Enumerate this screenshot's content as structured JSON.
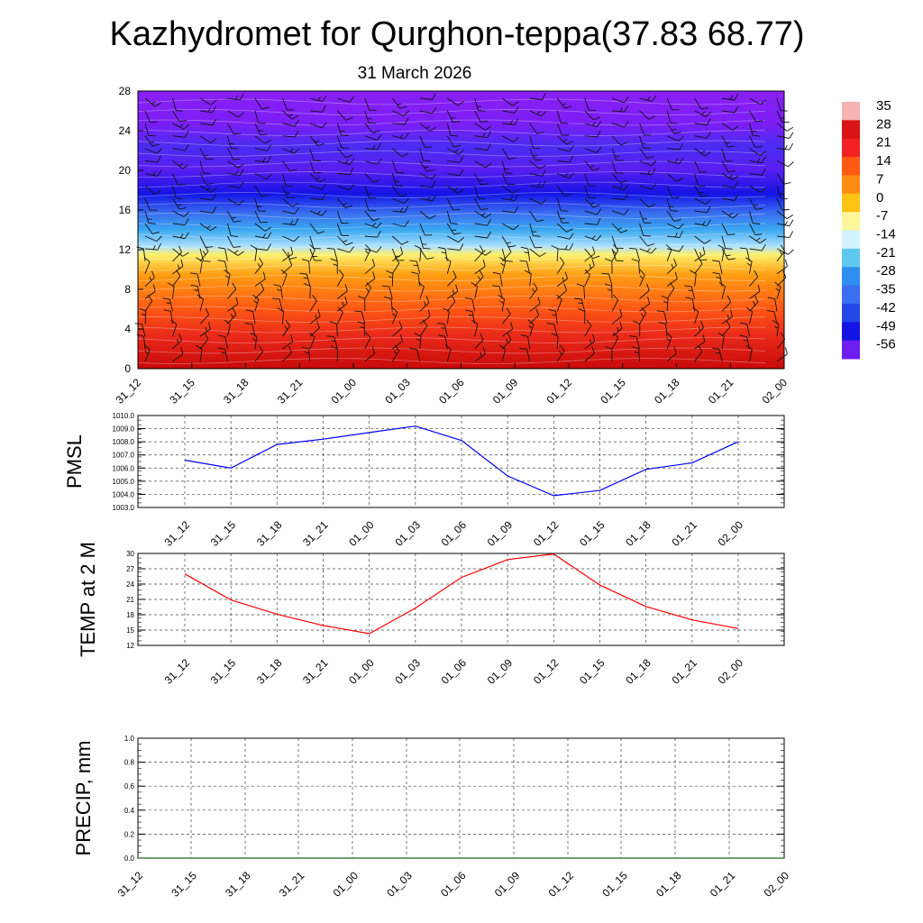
{
  "title": "Kazhydromet for Qurghon-teppa(37.83 68.77)",
  "subtitle": "31 March 2026",
  "time_labels": [
    "31_12",
    "31_15",
    "31_18",
    "31_21",
    "01_00",
    "01_03",
    "01_06",
    "01_09",
    "01_12",
    "01_15",
    "01_18",
    "01_21",
    "02_00"
  ],
  "chart_data": [
    {
      "type": "heatmap",
      "name": "temperature-wind-cross-section",
      "x_tick_labels": [
        "31_12",
        "31_15",
        "31_18",
        "31_21",
        "01_00",
        "01_03",
        "01_06",
        "01_09",
        "01_12",
        "01_15",
        "01_18",
        "01_21",
        "02_00"
      ],
      "y_ticks": [
        0,
        4,
        8,
        12,
        16,
        20,
        24,
        28
      ],
      "ylim": [
        0,
        28
      ],
      "colorbar": {
        "labels": [
          "35",
          "28",
          "21",
          "14",
          "7",
          "0",
          "-7",
          "-14",
          "-21",
          "-28",
          "-35",
          "-42",
          "-49",
          "-56"
        ],
        "colors": [
          "#f6b3b3",
          "#d81414",
          "#f22222",
          "#ff5a14",
          "#ff8c14",
          "#ffc314",
          "#fff59a",
          "#d2f3ff",
          "#5fc8f0",
          "#2e8ff0",
          "#3c6ef0",
          "#2448e8",
          "#1414e6",
          "#6f1ef0"
        ]
      },
      "wind_barbs": true
    },
    {
      "type": "line",
      "name": "pmsl",
      "ylabel": "PMSL",
      "x_tick_labels": [
        "31_12",
        "31_15",
        "31_18",
        "31_21",
        "01_00",
        "01_03",
        "01_06",
        "01_09",
        "01_12",
        "01_15",
        "01_18",
        "01_21",
        "02_00"
      ],
      "y_tick_labels": [
        "1010.0",
        "1009.0",
        "1008.0",
        "1007.0",
        "1006.0",
        "1005.0",
        "1004.0",
        "1003.0"
      ],
      "ylim": [
        1003,
        1010
      ],
      "values": [
        1006.6,
        1006.0,
        1007.8,
        1008.2,
        1008.7,
        1009.2,
        1008.1,
        1005.4,
        1003.9,
        1004.3,
        1005.9,
        1006.4,
        1008.0
      ],
      "color": "#0000ff"
    },
    {
      "type": "line",
      "name": "temp2m",
      "ylabel": "TEMP at 2 M",
      "x_tick_labels": [
        "31_12",
        "31_15",
        "31_18",
        "31_21",
        "01_00",
        "01_03",
        "01_06",
        "01_09",
        "01_12",
        "01_15",
        "01_18",
        "01_21",
        "02_00"
      ],
      "y_ticks": [
        12,
        15,
        18,
        21,
        24,
        27,
        30
      ],
      "ylim": [
        12,
        30
      ],
      "values": [
        26.0,
        20.9,
        18.1,
        15.9,
        14.3,
        19.3,
        25.3,
        28.8,
        29.9,
        23.8,
        19.6,
        17.0,
        15.3
      ],
      "color": "#ff0000"
    },
    {
      "type": "line",
      "name": "precip",
      "ylabel": "PRECIP, mm",
      "x_tick_labels": [
        "31_12",
        "31_15",
        "31_18",
        "31_21",
        "01_00",
        "01_03",
        "01_06",
        "01_09",
        "01_12",
        "01_15",
        "01_18",
        "01_21",
        "02_00"
      ],
      "y_tick_labels": [
        "1.0",
        "0.8",
        "0.6",
        "0.4",
        "0.2",
        "0.0"
      ],
      "ylim": [
        0,
        1
      ],
      "values": [
        0,
        0,
        0,
        0,
        0,
        0,
        0,
        0,
        0,
        0,
        0,
        0,
        0
      ],
      "color": "#1a6b1a"
    }
  ]
}
